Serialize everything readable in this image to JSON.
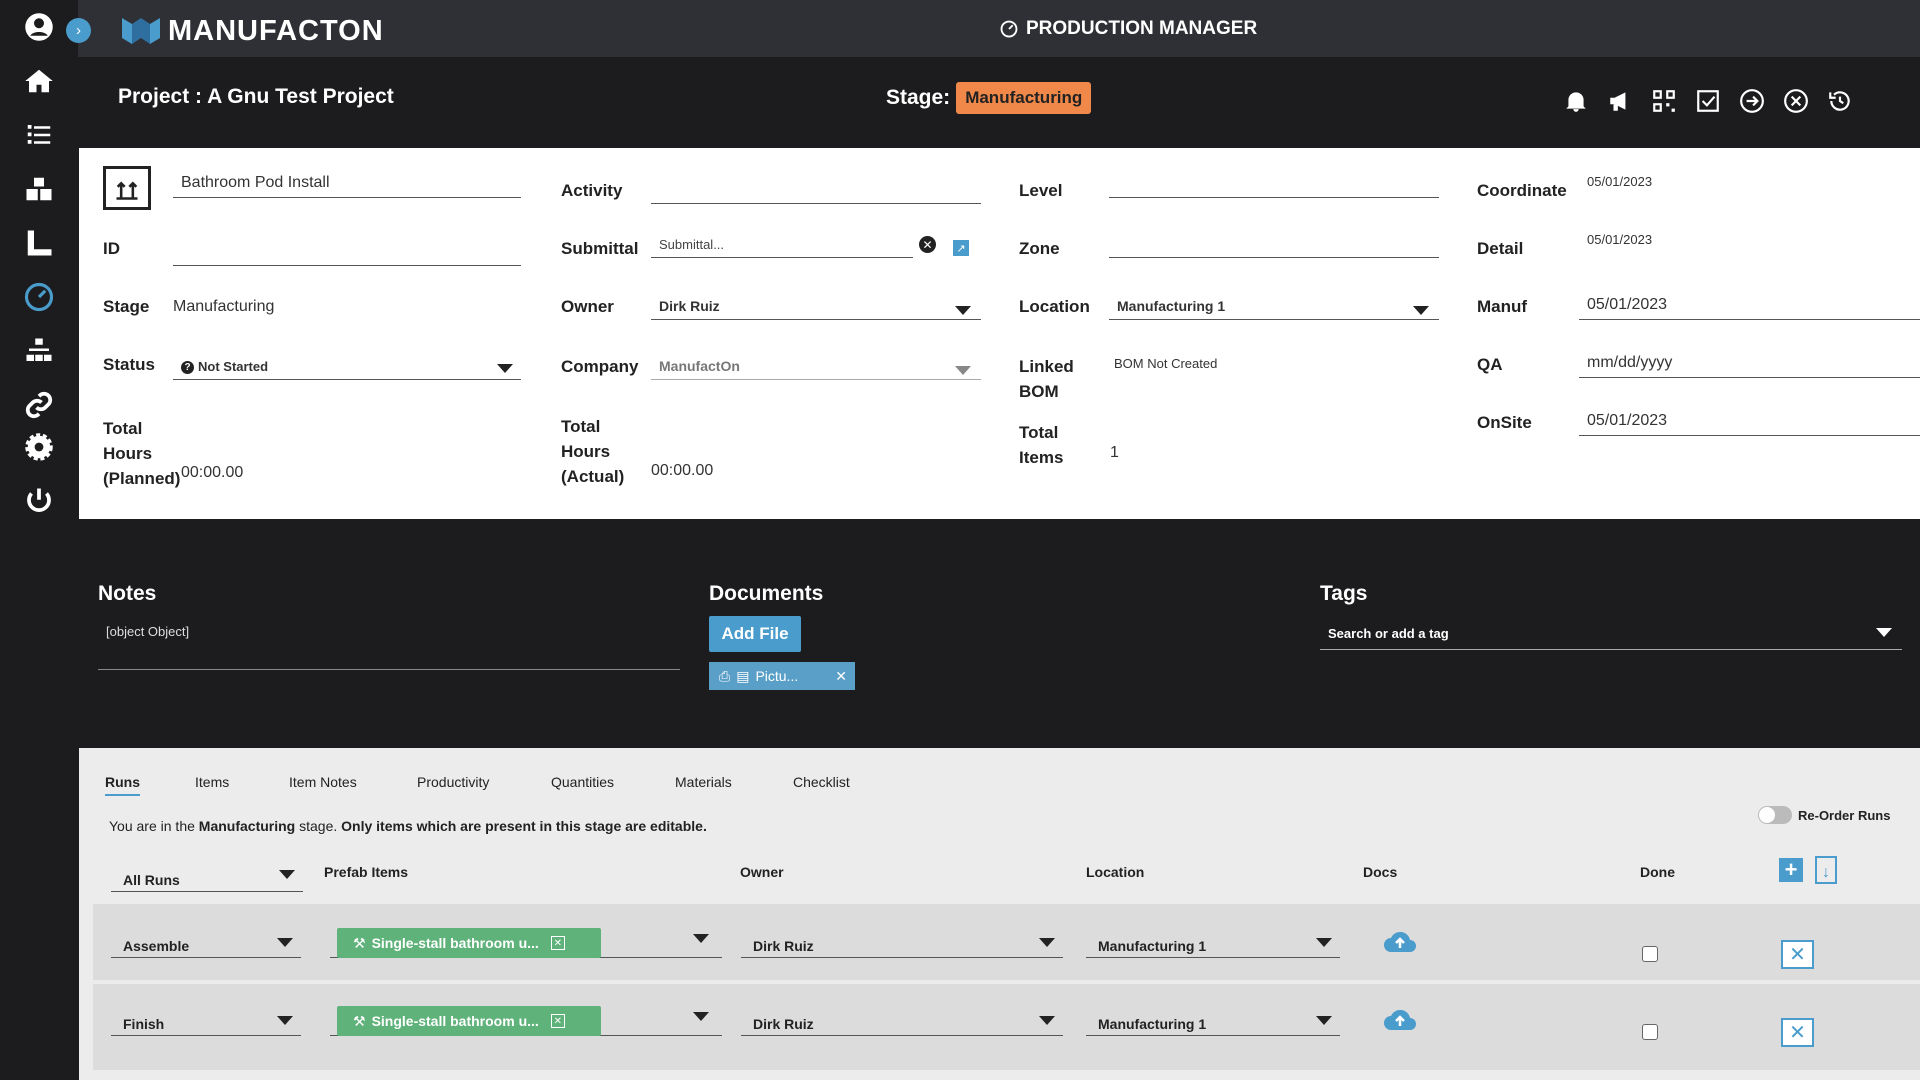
{
  "app": {
    "logo": "MANUFACTON",
    "title": "PRODUCTION MANAGER"
  },
  "project": {
    "title": "Project : A Gnu Test Project",
    "stage_label": "Stage:",
    "stage_value": "Manufacturing"
  },
  "form": {
    "name": "Bathroom Pod Install",
    "id_label": "ID",
    "stage_label": "Stage",
    "stage_value": "Manufacturing",
    "status_label": "Status",
    "status_value": "Not Started",
    "total_planned_label": [
      "Total",
      "Hours",
      "(Planned)"
    ],
    "total_planned_value": "00:00.00",
    "activity_label": "Activity",
    "submittal_label": "Submittal",
    "submittal_placeholder": "Submittal...",
    "owner_label": "Owner",
    "owner_value": "Dirk Ruiz",
    "company_label": "Company",
    "company_value": "ManufactOn",
    "total_actual_label": [
      "Total",
      "Hours",
      "(Actual)"
    ],
    "total_actual_value": "00:00.00",
    "level_label": "Level",
    "zone_label": "Zone",
    "location_label": "Location",
    "location_value": "Manufacturing 1",
    "linked_bom_label": [
      "Linked",
      "BOM"
    ],
    "linked_bom_value": "BOM Not Created",
    "total_items_label": [
      "Total",
      "Items"
    ],
    "total_items_value": "1",
    "coordinate_label": "Coordinate",
    "coordinate_value": "05/01/2023",
    "detail_label": "Detail",
    "detail_value": "05/01/2023",
    "manuf_label": "Manuf",
    "manuf_value": "05/01/2023",
    "qa_label": "QA",
    "qa_placeholder": "mm/dd/yyyy",
    "onsite_label": "OnSite",
    "onsite_value": "05/01/2023"
  },
  "notes": {
    "title": "Notes",
    "value": "[object Object]"
  },
  "documents": {
    "title": "Documents",
    "add_label": "Add File",
    "file_name": "Pictu..."
  },
  "tags": {
    "title": "Tags",
    "placeholder": "Search or add a tag"
  },
  "tabs": [
    "Runs",
    "Items",
    "Item Notes",
    "Productivity",
    "Quantities",
    "Materials",
    "Checklist"
  ],
  "info": {
    "pre": "You are in the",
    "stage": "Manufacturing",
    "mid": "stage.",
    "bold": "Only items which are present in this stage are editable."
  },
  "reorder_label": "Re-Order Runs",
  "table": {
    "filter": "All Runs",
    "headers": {
      "prefab": "Prefab Items",
      "owner": "Owner",
      "location": "Location",
      "docs": "Docs",
      "done": "Done"
    },
    "rows": [
      {
        "run": "Assemble",
        "item": "Single-stall bathroom u...",
        "owner": "Dirk Ruiz",
        "location": "Manufacturing 1"
      },
      {
        "run": "Finish",
        "item": "Single-stall bathroom u...",
        "owner": "Dirk Ruiz",
        "location": "Manufacturing 1"
      }
    ]
  }
}
